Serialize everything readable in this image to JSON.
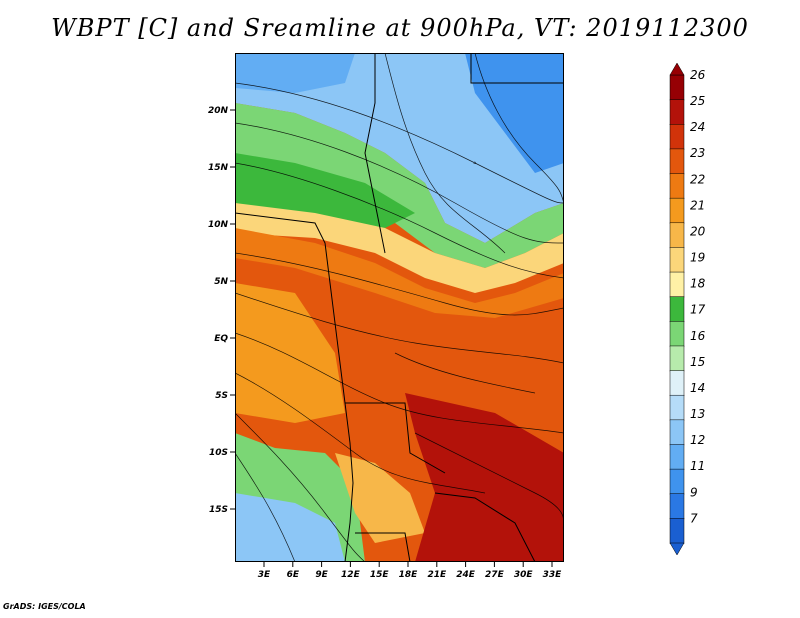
{
  "title": "WBPT [C] and Sreamline at 900hPa, VT: 2019112300",
  "credit": "GrADS: IGES/COLA",
  "lat_labels": [
    "20N",
    "15N",
    "10N",
    "5N",
    "EQ",
    "5S",
    "10S",
    "15S"
  ],
  "lon_labels": [
    "3E",
    "6E",
    "9E",
    "12E",
    "15E",
    "18E",
    "21E",
    "24E",
    "27E",
    "30E",
    "33E"
  ],
  "colorbar": {
    "labels": [
      "7",
      "9",
      "11",
      "12",
      "13",
      "14",
      "15",
      "16",
      "17",
      "18",
      "19",
      "20",
      "21",
      "22",
      "23",
      "24",
      "25",
      "26"
    ],
    "colors": [
      "#1a5fd1",
      "#2a78e4",
      "#3f93ee",
      "#62adf3",
      "#8cc6f6",
      "#b5dcf8",
      "#dff1f8",
      "#b7ebac",
      "#7bd675",
      "#3cb83c",
      "#fff1a6",
      "#fbd67a",
      "#f7b749",
      "#f49a1e",
      "#ee7a12",
      "#e3570d",
      "#d1330a",
      "#b3120a",
      "#960004"
    ]
  }
}
